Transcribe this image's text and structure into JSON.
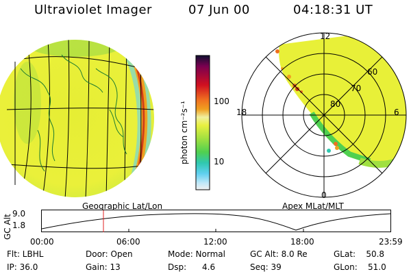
{
  "header": {
    "instrument": "Ultraviolet Imager",
    "date": "07 Jun 00",
    "time": "04:18:31 UT"
  },
  "colorbar": {
    "label": "photon cm⁻²s⁻¹",
    "ticks": [
      "100",
      "10"
    ],
    "colors": [
      "#101030",
      "#7a0050",
      "#d01020",
      "#f07020",
      "#f0a020",
      "#f0f0a0",
      "#e8f040",
      "#a0e040",
      "#50d050",
      "#30c8b0",
      "#60d0f0",
      "#c0e8f8",
      "#f0f0f0"
    ]
  },
  "geo_panel": {
    "label": "Geographic Lat/Lon"
  },
  "polar_panel": {
    "label": "Apex MLat/MLT",
    "mlt_labels": {
      "top": "12",
      "left": "18",
      "right": "6",
      "bottom": "0"
    },
    "lat_labels": [
      "60",
      "70",
      "80"
    ]
  },
  "altitude_plot": {
    "ylabel": "GC Alt",
    "yticks": [
      "9.0",
      "1.8"
    ],
    "xticks": [
      "00:00",
      "06:00",
      "12:00",
      "18:00",
      "23:59"
    ],
    "marker_time": "04:18"
  },
  "info": {
    "filter": "Flt: LBHL",
    "ip": "IP: 36.0",
    "door": "Door: Open",
    "gain": "Gain: 13",
    "mode": "Mode: Normal",
    "dsp": "Dsp:      4.6",
    "gc_alt": "GC Alt: 8.0 Re",
    "seq": "Seq: 39",
    "glat": "GLat:    50.8",
    "glon": "GLon:    51.0"
  },
  "colors": {
    "aurora_fill": "#e8f038",
    "limb_glow": "#d06020",
    "coast": "#1a7a30",
    "marker": "#e02020"
  }
}
